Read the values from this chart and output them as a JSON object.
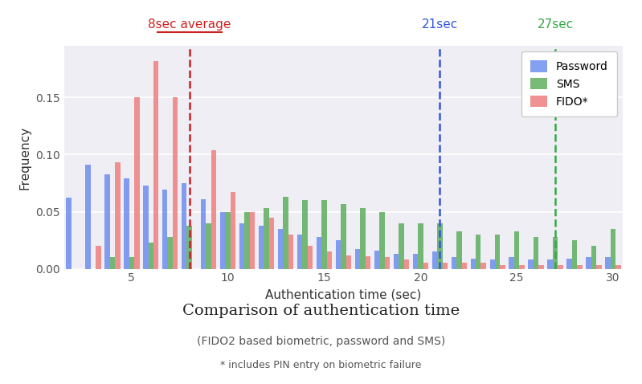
{
  "title": "Comparison of authentication time",
  "subtitle1": "(FIDO2 based biometric, password and SMS)",
  "subtitle2": "* includes PIN entry on biometric failure",
  "xlabel": "Authentication time (sec)",
  "ylabel": "Frequency",
  "xlim": [
    1.5,
    30.5
  ],
  "ylim": [
    0,
    0.195
  ],
  "yticks": [
    0.0,
    0.05,
    0.1,
    0.15
  ],
  "xticks": [
    5,
    10,
    15,
    20,
    25,
    30
  ],
  "bar_width": 0.27,
  "bin_centers": [
    2,
    3,
    4,
    5,
    6,
    7,
    8,
    9,
    10,
    11,
    12,
    13,
    14,
    15,
    16,
    17,
    18,
    19,
    20,
    21,
    22,
    23,
    24,
    25,
    26,
    27,
    28,
    29,
    30
  ],
  "password_color": "#6688ee",
  "sms_color": "#55aa55",
  "fido_color": "#ee7777",
  "password_values": [
    0.062,
    0.091,
    0.083,
    0.079,
    0.073,
    0.069,
    0.075,
    0.061,
    0.05,
    0.04,
    0.038,
    0.035,
    0.03,
    0.028,
    0.025,
    0.017,
    0.016,
    0.013,
    0.013,
    0.015,
    0.01,
    0.009,
    0.008,
    0.01,
    0.008,
    0.008,
    0.009,
    0.01,
    0.01
  ],
  "sms_values": [
    0.0,
    0.0,
    0.01,
    0.01,
    0.023,
    0.028,
    0.038,
    0.04,
    0.05,
    0.05,
    0.053,
    0.063,
    0.06,
    0.06,
    0.057,
    0.053,
    0.05,
    0.04,
    0.04,
    0.04,
    0.033,
    0.03,
    0.03,
    0.033,
    0.028,
    0.028,
    0.025,
    0.02,
    0.035
  ],
  "fido_values": [
    0.0,
    0.02,
    0.093,
    0.15,
    0.182,
    0.15,
    0.0,
    0.104,
    0.067,
    0.05,
    0.045,
    0.03,
    0.02,
    0.015,
    0.012,
    0.011,
    0.01,
    0.008,
    0.005,
    0.005,
    0.005,
    0.005,
    0.003,
    0.003,
    0.003,
    0.003,
    0.003,
    0.003,
    0.003
  ],
  "vline_fido_x": 8,
  "vline_password_x": 21,
  "vline_sms_x": 27,
  "vline_fido_color": "#cc2222",
  "vline_password_color": "#3355dd",
  "vline_sms_color": "#33aa44",
  "label_fido": "8sec average",
  "label_password": "21sec",
  "label_sms": "27sec",
  "background_color": "#eeeef4"
}
